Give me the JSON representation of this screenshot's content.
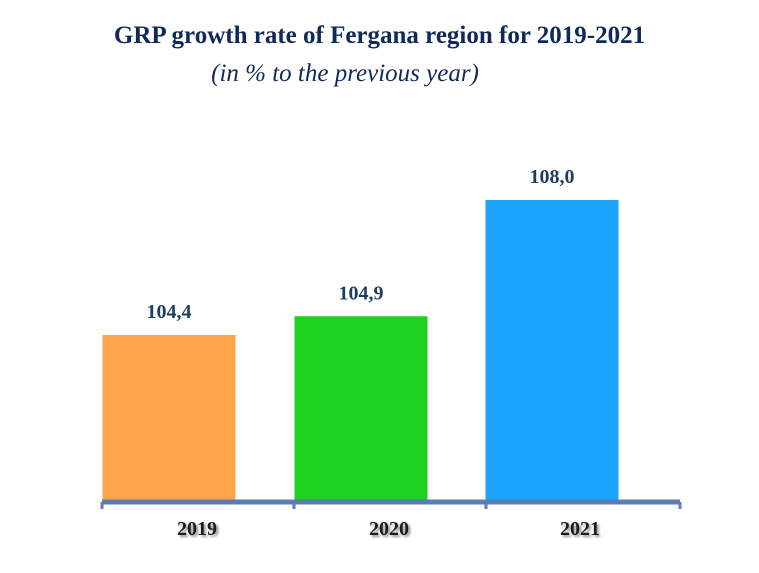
{
  "chart_data": {
    "type": "bar",
    "title": "GRP growth rate of Fergana region for 2019-2021",
    "subtitle": "(in % to the previous year)",
    "categories": [
      "2019",
      "2020",
      "2021"
    ],
    "values": [
      104.4,
      104.9,
      108.0
    ],
    "value_labels": [
      "104,4",
      "104,9",
      "108,0"
    ],
    "colors": [
      "#fba449",
      "#1ed11e",
      "#1ca3fb"
    ],
    "axis_color": "#5b7db3",
    "xlabel": "",
    "ylabel": "",
    "ylim": [
      100,
      108.8
    ],
    "grid": false,
    "legend": "none"
  }
}
